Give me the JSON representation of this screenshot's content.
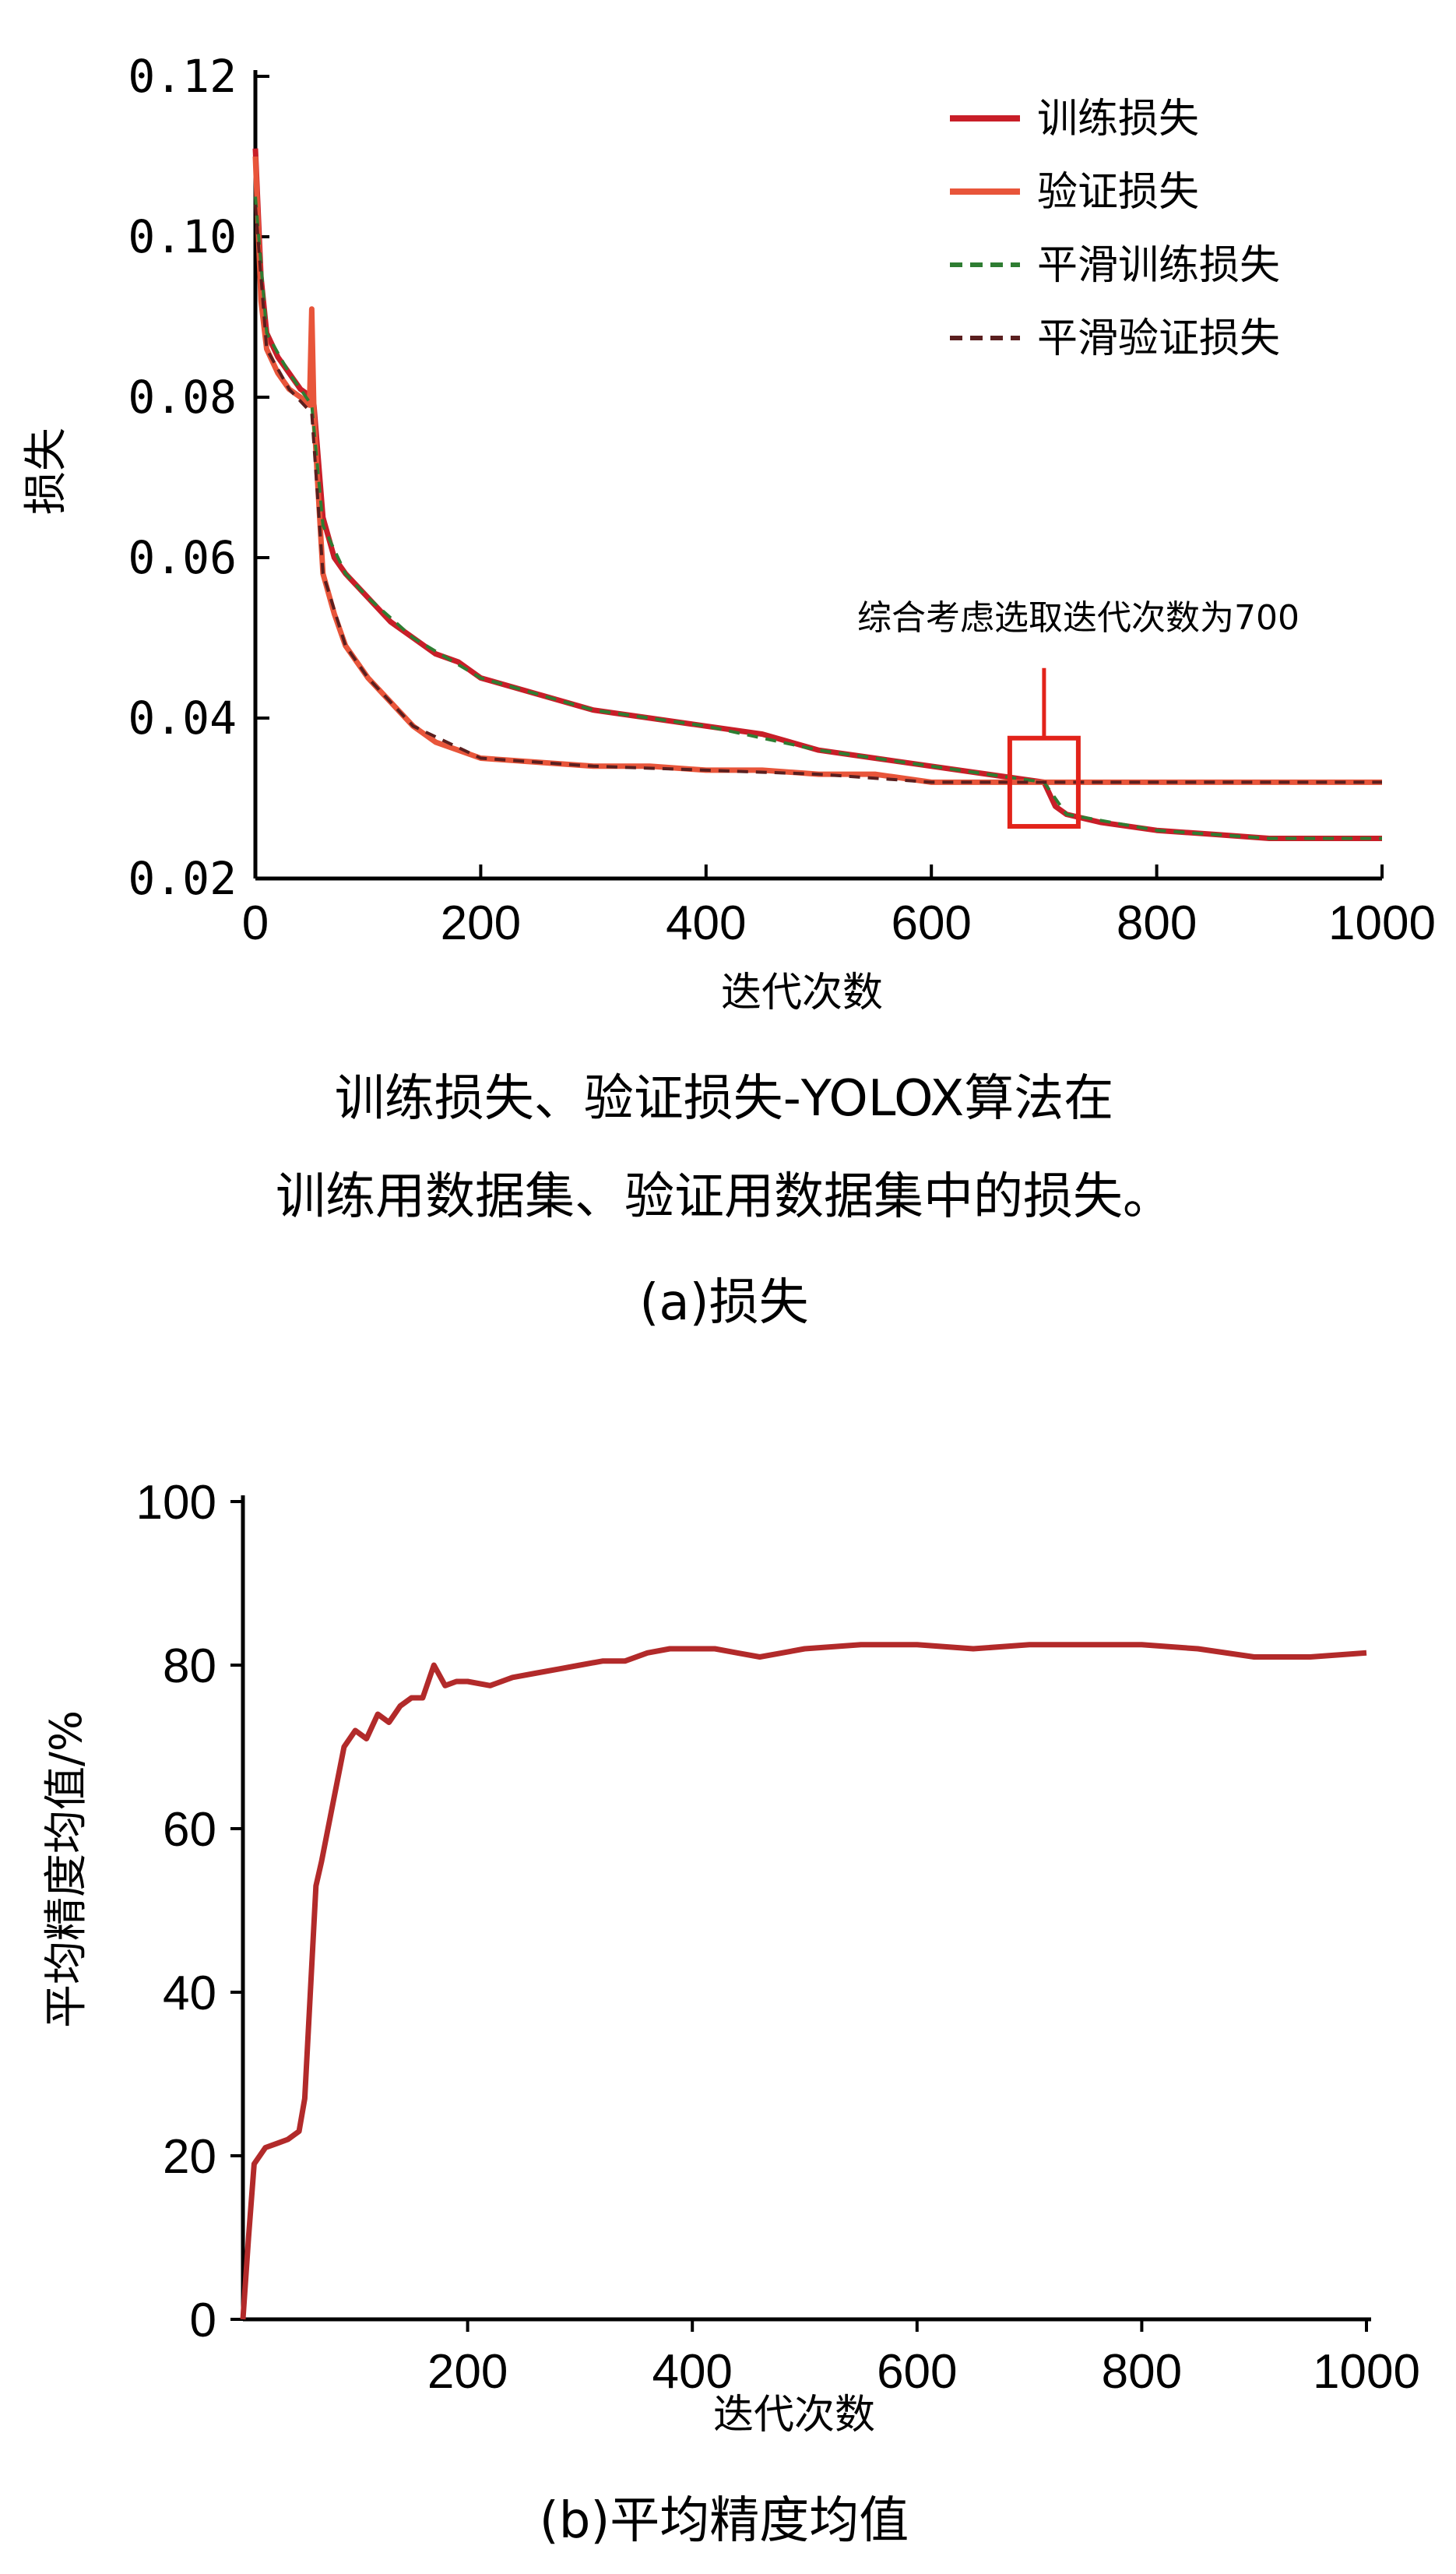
{
  "chart_data": [
    {
      "type": "line",
      "panel": "a",
      "xlabel": "迭代次数",
      "ylabel": "损失",
      "xlim": [
        0,
        1000
      ],
      "ylim": [
        0.02,
        0.12
      ],
      "xticks": [
        0,
        200,
        400,
        600,
        800,
        1000
      ],
      "yticks": [
        0.02,
        0.04,
        0.06,
        0.08,
        0.1,
        0.12
      ],
      "ytick_labels": [
        "0.02",
        "0.04",
        "0.06",
        "0.08",
        "0.10",
        "0.12"
      ],
      "legend_position": "top-right",
      "colors": {
        "train": "#c81e28",
        "val": "#e8553a",
        "smooth_train": "#2e7d32",
        "smooth_val": "#5a1f1f",
        "highlight": "#e2231a"
      },
      "series": [
        {
          "name": "训练损失",
          "style": "solid",
          "x": [
            0,
            5,
            10,
            20,
            30,
            40,
            50,
            52,
            60,
            70,
            80,
            100,
            120,
            140,
            160,
            180,
            200,
            250,
            300,
            350,
            400,
            450,
            500,
            550,
            600,
            650,
            700,
            710,
            720,
            750,
            800,
            850,
            900,
            950,
            1000
          ],
          "y": [
            0.111,
            0.095,
            0.088,
            0.085,
            0.083,
            0.081,
            0.08,
            0.079,
            0.065,
            0.06,
            0.058,
            0.055,
            0.052,
            0.05,
            0.048,
            0.047,
            0.045,
            0.043,
            0.041,
            0.04,
            0.039,
            0.038,
            0.036,
            0.035,
            0.034,
            0.033,
            0.032,
            0.029,
            0.028,
            0.027,
            0.026,
            0.0255,
            0.025,
            0.025,
            0.025
          ]
        },
        {
          "name": "验证损失",
          "style": "solid",
          "x": [
            0,
            5,
            10,
            20,
            30,
            40,
            48,
            50,
            52,
            55,
            60,
            70,
            80,
            100,
            120,
            140,
            160,
            180,
            200,
            250,
            300,
            350,
            400,
            450,
            500,
            550,
            600,
            650,
            700,
            750,
            800,
            850,
            900,
            950,
            1000
          ],
          "y": [
            0.11,
            0.092,
            0.086,
            0.083,
            0.081,
            0.08,
            0.079,
            0.091,
            0.078,
            0.07,
            0.058,
            0.053,
            0.049,
            0.045,
            0.042,
            0.039,
            0.037,
            0.036,
            0.035,
            0.0345,
            0.034,
            0.034,
            0.0335,
            0.0335,
            0.033,
            0.033,
            0.032,
            0.032,
            0.032,
            0.032,
            0.032,
            0.032,
            0.032,
            0.032,
            0.032
          ]
        },
        {
          "name": "平滑训练损失",
          "style": "dashed",
          "x": [
            0,
            10,
            30,
            50,
            60,
            80,
            100,
            140,
            200,
            300,
            400,
            500,
            600,
            700,
            720,
            800,
            900,
            1000
          ],
          "y": [
            0.105,
            0.088,
            0.083,
            0.079,
            0.064,
            0.058,
            0.055,
            0.05,
            0.045,
            0.041,
            0.039,
            0.036,
            0.034,
            0.032,
            0.028,
            0.026,
            0.025,
            0.025
          ]
        },
        {
          "name": "平滑验证损失",
          "style": "dashed",
          "x": [
            0,
            10,
            30,
            50,
            60,
            80,
            100,
            140,
            200,
            300,
            400,
            500,
            600,
            700,
            800,
            900,
            1000
          ],
          "y": [
            0.104,
            0.086,
            0.081,
            0.078,
            0.058,
            0.049,
            0.045,
            0.039,
            0.035,
            0.034,
            0.0335,
            0.033,
            0.032,
            0.032,
            0.032,
            0.032,
            0.032
          ]
        }
      ],
      "annotation": {
        "text": "综合考虑选取迭代次数为700",
        "x": 700,
        "y_low": 0.0265,
        "y_high": 0.0375
      },
      "caption_lines": [
        "训练损失、验证损失-YOLOX算法在",
        "训练用数据集、验证用数据集中的损失。"
      ],
      "panel_label": "(a)损失"
    },
    {
      "type": "line",
      "panel": "b",
      "xlabel": "迭代次数",
      "ylabel": "平均精度均值/%",
      "xlim": [
        0,
        1000
      ],
      "ylim": [
        0,
        100
      ],
      "xticks": [
        200,
        400,
        600,
        800,
        1000
      ],
      "yticks": [
        0,
        20,
        40,
        60,
        80,
        100
      ],
      "colors": {
        "line": "#b22a2a"
      },
      "series": [
        {
          "x": [
            0,
            5,
            10,
            20,
            30,
            40,
            50,
            55,
            60,
            65,
            70,
            80,
            90,
            100,
            110,
            120,
            130,
            140,
            150,
            160,
            170,
            180,
            190,
            200,
            220,
            240,
            260,
            280,
            300,
            320,
            340,
            360,
            380,
            400,
            420,
            440,
            460,
            480,
            500,
            550,
            600,
            650,
            700,
            750,
            800,
            850,
            900,
            950,
            1000
          ],
          "y": [
            0,
            10,
            19,
            21,
            21.5,
            22,
            23,
            27,
            40,
            53,
            56,
            63,
            70,
            72,
            71,
            74,
            73,
            75,
            76,
            76,
            80,
            77.5,
            78,
            78,
            77.5,
            78.5,
            79,
            79.5,
            80,
            80.5,
            80.5,
            81.5,
            82,
            82,
            82,
            81.5,
            81,
            81.5,
            82,
            82.5,
            82.5,
            82,
            82.5,
            82.5,
            82.5,
            82,
            81,
            81,
            81.5
          ]
        }
      ],
      "panel_label": "(b)平均精度均值"
    }
  ]
}
